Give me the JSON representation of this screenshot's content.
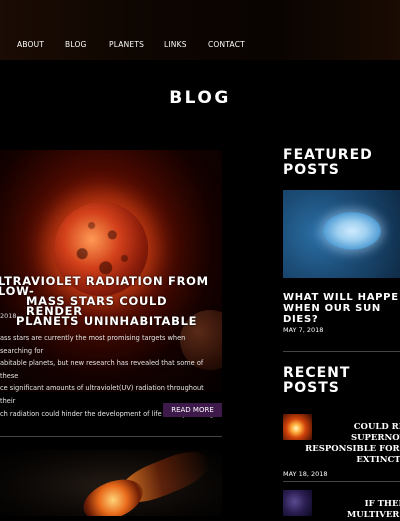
{
  "nav": {
    "items": [
      "ABOUT",
      "BLOG",
      "PLANETS",
      "LINKS",
      "CONTACT"
    ]
  },
  "page": {
    "title": "BLOG"
  },
  "main_post": {
    "title": "Ultraviolet Radiation From Low-Mass Stars Could Render Planets Uninhabitable",
    "title_lines": [
      "LTRAVIOLET RADIATION FROM LOW-",
      "MASS STARS COULD RENDER",
      "PLANETS UNINHABITABLE"
    ],
    "date": "2018",
    "excerpt_lines": [
      "ass stars are currently the most promising targets when searching for",
      "abitable planets, but new research has revealed that some of these",
      "ce significant amounts of ultraviolet(UV) radiation throughout their",
      "ch radiation could hinder the development of life on any orbiting"
    ],
    "read_more_label": "READ MORE"
  },
  "sidebar": {
    "featured_heading_lines": [
      "FEATURED",
      "POSTS"
    ],
    "featured_post": {
      "title_lines": [
        "WHAT WILL HAPPE",
        "WHEN OUR SUN",
        "DIES?"
      ],
      "date": "MAY 7, 2018"
    },
    "recent_heading_lines": [
      "RECENT",
      "POSTS"
    ],
    "recent_posts": [
      {
        "title_lines": [
          "COULD REC",
          "SUPERNOVA",
          "RESPONSIBLE FOR M",
          "EXTINCTIO"
        ],
        "date": "MAY 18, 2018"
      },
      {
        "title_lines": [
          "IF THERE",
          "MULTIVERSE"
        ]
      }
    ]
  }
}
